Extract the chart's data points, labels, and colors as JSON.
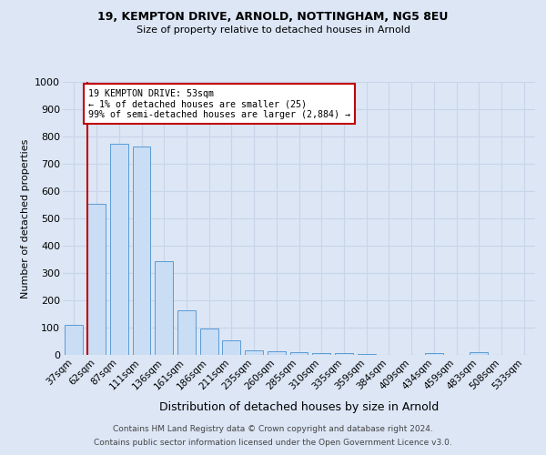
{
  "title1": "19, KEMPTON DRIVE, ARNOLD, NOTTINGHAM, NG5 8EU",
  "title2": "Size of property relative to detached houses in Arnold",
  "xlabel": "Distribution of detached houses by size in Arnold",
  "ylabel": "Number of detached properties",
  "categories": [
    "37sqm",
    "62sqm",
    "87sqm",
    "111sqm",
    "136sqm",
    "161sqm",
    "186sqm",
    "211sqm",
    "235sqm",
    "260sqm",
    "285sqm",
    "310sqm",
    "335sqm",
    "359sqm",
    "384sqm",
    "409sqm",
    "434sqm",
    "459sqm",
    "483sqm",
    "508sqm",
    "533sqm"
  ],
  "values": [
    110,
    555,
    775,
    765,
    345,
    163,
    97,
    53,
    18,
    13,
    10,
    8,
    6,
    4,
    0,
    0,
    8,
    0,
    10,
    0,
    0
  ],
  "bar_color": "#c9ddf5",
  "bar_edge_color": "#5b9bd5",
  "vline_color": "#c00000",
  "annotation_text": "19 KEMPTON DRIVE: 53sqm\n← 1% of detached houses are smaller (25)\n99% of semi-detached houses are larger (2,884) →",
  "annotation_box_color": "#ffffff",
  "annotation_box_edge": "#c00000",
  "ylim": [
    0,
    1000
  ],
  "yticks": [
    0,
    100,
    200,
    300,
    400,
    500,
    600,
    700,
    800,
    900,
    1000
  ],
  "grid_color": "#c8d4e8",
  "footer1": "Contains HM Land Registry data © Crown copyright and database right 2024.",
  "footer2": "Contains public sector information licensed under the Open Government Licence v3.0.",
  "bg_color": "#dce6f5",
  "plot_bg_color": "#dce6f5"
}
